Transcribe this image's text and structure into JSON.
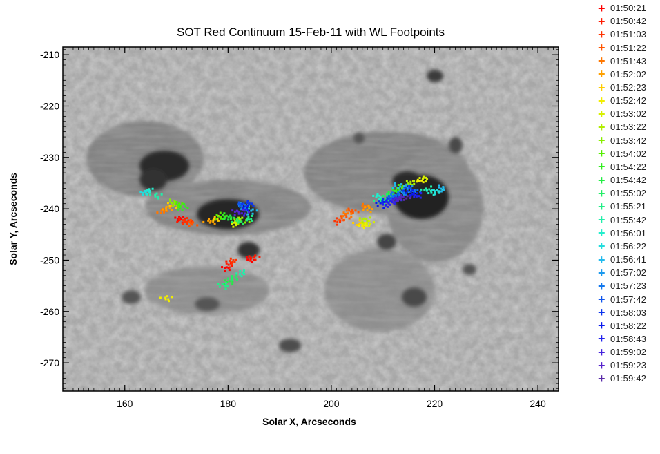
{
  "chart_data": {
    "type": "scatter",
    "title": "SOT Red Continuum 15-Feb-11 with WL Footpoints",
    "xlabel": "Solar X, Arcseconds",
    "ylabel": "Solar Y, Arcseconds",
    "xlim": [
      148,
      244
    ],
    "ylim": [
      -275.5,
      -208.5
    ],
    "xticks": [
      160,
      180,
      200,
      220,
      240
    ],
    "yticks": [
      -210,
      -220,
      -230,
      -240,
      -250,
      -260,
      -270
    ],
    "background": "grayscale SOT red continuum image (sunspot group with granulation)",
    "legend_position": "right, outside plot",
    "series": [
      {
        "name": "01:50:21",
        "color": "#ff0000",
        "points": [
          [
            170.5,
            -241.8
          ],
          [
            179.8,
            -251.5
          ],
          [
            184.5,
            -249.8
          ]
        ]
      },
      {
        "name": "01:50:42",
        "color": "#ff1a00",
        "points": [
          [
            171.2,
            -242.2
          ],
          [
            180.4,
            -250.8
          ],
          [
            185.0,
            -249.5
          ]
        ]
      },
      {
        "name": "01:51:03",
        "color": "#ff3300",
        "points": [
          [
            172.0,
            -242.5
          ],
          [
            181.0,
            -250.2
          ],
          [
            201.5,
            -242.5
          ]
        ]
      },
      {
        "name": "01:51:22",
        "color": "#ff5500",
        "points": [
          [
            173.0,
            -242.8
          ],
          [
            202.5,
            -241.8
          ],
          [
            204.0,
            -240.5
          ]
        ]
      },
      {
        "name": "01:51:43",
        "color": "#ff7700",
        "points": [
          [
            167.5,
            -240.5
          ],
          [
            203.0,
            -241.0
          ],
          [
            206.5,
            -239.5
          ]
        ]
      },
      {
        "name": "01:52:02",
        "color": "#ffa000",
        "points": [
          [
            168.3,
            -240.0
          ],
          [
            176.5,
            -242.5
          ],
          [
            207.0,
            -240.0
          ]
        ]
      },
      {
        "name": "01:52:23",
        "color": "#ffcc00",
        "points": [
          [
            169.5,
            -239.2
          ],
          [
            177.5,
            -242.0
          ],
          [
            205.5,
            -242.8
          ]
        ]
      },
      {
        "name": "01:52:42",
        "color": "#f2ee00",
        "points": [
          [
            168.0,
            -257.5
          ],
          [
            206.2,
            -243.2
          ],
          [
            217.0,
            -234.5
          ]
        ]
      },
      {
        "name": "01:53:02",
        "color": "#d8f000",
        "points": [
          [
            181.2,
            -242.8
          ],
          [
            207.0,
            -242.8
          ],
          [
            218.0,
            -234.0
          ]
        ]
      },
      {
        "name": "01:53:22",
        "color": "#b0ee00",
        "points": [
          [
            182.0,
            -242.0
          ],
          [
            206.5,
            -242.0
          ],
          [
            215.5,
            -235.0
          ]
        ]
      },
      {
        "name": "01:53:42",
        "color": "#88ee00",
        "points": [
          [
            183.0,
            -242.5
          ],
          [
            169.5,
            -238.8
          ],
          [
            214.5,
            -235.5
          ]
        ]
      },
      {
        "name": "01:54:02",
        "color": "#55ee00",
        "points": [
          [
            178.5,
            -241.5
          ],
          [
            170.5,
            -239.2
          ],
          [
            213.5,
            -236.0
          ]
        ]
      },
      {
        "name": "01:54:22",
        "color": "#33ee22",
        "points": [
          [
            179.5,
            -241.5
          ],
          [
            171.2,
            -239.8
          ],
          [
            212.5,
            -236.5
          ]
        ]
      },
      {
        "name": "01:54:42",
        "color": "#22ee44",
        "points": [
          [
            180.5,
            -241.8
          ],
          [
            180.0,
            -254.2
          ],
          [
            211.5,
            -237.2
          ]
        ]
      },
      {
        "name": "01:55:02",
        "color": "#22ee66",
        "points": [
          [
            181.0,
            -253.5
          ],
          [
            182.0,
            -242.5
          ],
          [
            210.5,
            -237.8
          ]
        ]
      },
      {
        "name": "01:55:21",
        "color": "#22ee88",
        "points": [
          [
            179.2,
            -255.0
          ],
          [
            184.0,
            -242.0
          ],
          [
            209.5,
            -238.5
          ]
        ]
      },
      {
        "name": "01:55:42",
        "color": "#22eeaa",
        "points": [
          [
            166.0,
            -237.5
          ],
          [
            182.5,
            -252.5
          ],
          [
            218.5,
            -236.2
          ]
        ]
      },
      {
        "name": "01:56:01",
        "color": "#22eecc",
        "points": [
          [
            164.5,
            -236.5
          ],
          [
            219.5,
            -236.8
          ],
          [
            209.0,
            -237.5
          ]
        ]
      },
      {
        "name": "01:56:22",
        "color": "#22dddd",
        "points": [
          [
            163.8,
            -236.8
          ],
          [
            220.5,
            -236.5
          ],
          [
            183.5,
            -239.8
          ]
        ]
      },
      {
        "name": "01:56:41",
        "color": "#22bbee",
        "points": [
          [
            213.0,
            -235.5
          ],
          [
            221.5,
            -236.0
          ],
          [
            184.5,
            -240.5
          ]
        ]
      },
      {
        "name": "01:57:02",
        "color": "#1a99ee",
        "points": [
          [
            214.0,
            -236.8
          ],
          [
            215.0,
            -235.8
          ],
          [
            183.0,
            -239.5
          ]
        ]
      },
      {
        "name": "01:57:23",
        "color": "#1177ee",
        "points": [
          [
            212.0,
            -237.5
          ],
          [
            213.5,
            -237.2
          ],
          [
            216.0,
            -236.5
          ]
        ]
      },
      {
        "name": "01:57:42",
        "color": "#0f55ee",
        "points": [
          [
            211.2,
            -238.0
          ],
          [
            212.8,
            -237.8
          ],
          [
            182.5,
            -239.2
          ]
        ]
      },
      {
        "name": "01:58:03",
        "color": "#0a33ee",
        "points": [
          [
            210.2,
            -238.5
          ],
          [
            184.0,
            -239.0
          ],
          [
            214.8,
            -236.2
          ]
        ]
      },
      {
        "name": "01:58:22",
        "color": "#0a1aee",
        "points": [
          [
            209.8,
            -239.2
          ],
          [
            183.2,
            -240.0
          ],
          [
            215.8,
            -237.0
          ]
        ]
      },
      {
        "name": "01:58:43",
        "color": "#2222ee",
        "points": [
          [
            211.8,
            -238.6
          ],
          [
            210.8,
            -239.0
          ],
          [
            216.5,
            -237.5
          ]
        ]
      },
      {
        "name": "01:59:02",
        "color": "#4422dd",
        "points": [
          [
            212.3,
            -238.2
          ],
          [
            182.8,
            -240.8
          ]
        ]
      },
      {
        "name": "01:59:23",
        "color": "#5522cc",
        "points": [
          [
            213.2,
            -238.0
          ],
          [
            181.8,
            -240.5
          ]
        ]
      },
      {
        "name": "01:59:42",
        "color": "#5a2aa8",
        "points": [
          [
            214.2,
            -237.8
          ]
        ]
      }
    ]
  }
}
